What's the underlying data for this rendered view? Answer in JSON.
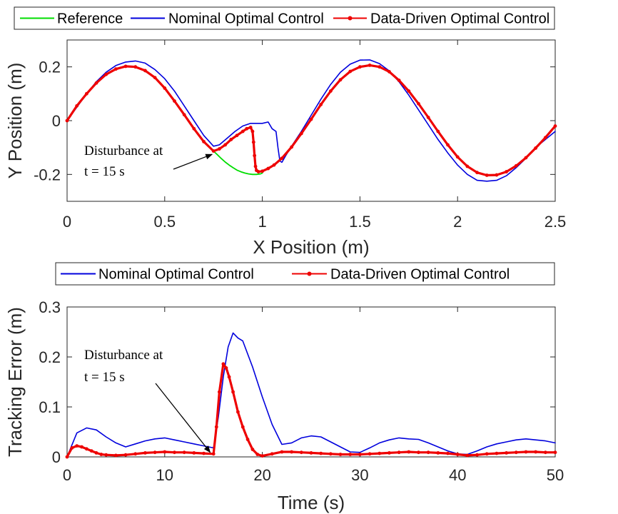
{
  "chart_data": [
    {
      "type": "line",
      "title": "",
      "xlabel": "X Position (m)",
      "ylabel": "Y Position (m)",
      "xlim": [
        0,
        2.5
      ],
      "ylim": [
        -0.3,
        0.3
      ],
      "xticks": [
        0,
        0.5,
        1,
        1.5,
        2,
        2.5
      ],
      "xtick_labels": [
        "0",
        "0.5",
        "1",
        "1.5",
        "2",
        "2.5"
      ],
      "yticks": [
        -0.2,
        0,
        0.2
      ],
      "ytick_labels": [
        "-0.2",
        "0",
        "0.2"
      ],
      "legend": [
        "Reference",
        "Nominal Optimal Control",
        "Data-Driven Optimal Control"
      ],
      "legend_position": "top",
      "annotation": {
        "line1": "Disturbance at",
        "line2": "t = 15 s",
        "target": [
          0.75,
          -0.12
        ]
      },
      "series": [
        {
          "name": "Reference",
          "color": "#00dd00",
          "x": [
            0.75,
            0.77,
            0.79,
            0.81,
            0.83,
            0.85,
            0.87,
            0.89,
            0.91,
            0.93,
            0.95,
            0.97,
            0.99,
            1.0
          ],
          "y": [
            -0.113,
            -0.127,
            -0.141,
            -0.154,
            -0.165,
            -0.175,
            -0.184,
            -0.19,
            -0.195,
            -0.198,
            -0.2,
            -0.2,
            -0.198,
            -0.195
          ]
        },
        {
          "name": "Nominal Optimal Control",
          "color": "#0000dd",
          "x": [
            0,
            0.05,
            0.1,
            0.15,
            0.2,
            0.25,
            0.3,
            0.35,
            0.4,
            0.45,
            0.5,
            0.55,
            0.6,
            0.65,
            0.7,
            0.75,
            0.78,
            0.82,
            0.86,
            0.9,
            0.94,
            0.97,
            1.0,
            1.03,
            1.05,
            1.07,
            1.08,
            1.09,
            1.1,
            1.12,
            1.15,
            1.2,
            1.25,
            1.3,
            1.35,
            1.4,
            1.45,
            1.5,
            1.55,
            1.6,
            1.65,
            1.7,
            1.75,
            1.8,
            1.85,
            1.9,
            1.95,
            2.0,
            2.05,
            2.1,
            2.15,
            2.2,
            2.25,
            2.3,
            2.35,
            2.4,
            2.45,
            2.5
          ],
          "y": [
            0,
            0.05,
            0.1,
            0.145,
            0.18,
            0.205,
            0.218,
            0.222,
            0.214,
            0.19,
            0.156,
            0.11,
            0.055,
            0.0,
            -0.055,
            -0.095,
            -0.09,
            -0.065,
            -0.04,
            -0.02,
            -0.01,
            -0.01,
            -0.01,
            -0.005,
            -0.03,
            -0.04,
            -0.1,
            -0.15,
            -0.155,
            -0.13,
            -0.095,
            -0.04,
            0.02,
            0.08,
            0.135,
            0.18,
            0.21,
            0.225,
            0.226,
            0.212,
            0.185,
            0.145,
            0.095,
            0.04,
            -0.015,
            -0.07,
            -0.12,
            -0.165,
            -0.2,
            -0.222,
            -0.225,
            -0.222,
            -0.205,
            -0.175,
            -0.14,
            -0.1,
            -0.07,
            -0.04
          ]
        },
        {
          "name": "Data-Driven Optimal Control",
          "color": "#ee0000",
          "x": [
            0,
            0.05,
            0.1,
            0.15,
            0.2,
            0.25,
            0.3,
            0.35,
            0.4,
            0.45,
            0.5,
            0.55,
            0.6,
            0.65,
            0.7,
            0.75,
            0.78,
            0.81,
            0.84,
            0.87,
            0.9,
            0.92,
            0.94,
            0.95,
            0.955,
            0.96,
            0.965,
            0.97,
            0.98,
            1.0,
            1.03,
            1.06,
            1.1,
            1.15,
            1.2,
            1.25,
            1.3,
            1.35,
            1.4,
            1.45,
            1.5,
            1.55,
            1.6,
            1.65,
            1.7,
            1.75,
            1.8,
            1.85,
            1.9,
            1.95,
            2.0,
            2.05,
            2.1,
            2.15,
            2.2,
            2.25,
            2.3,
            2.35,
            2.4,
            2.45,
            2.5
          ],
          "y": [
            0,
            0.055,
            0.1,
            0.14,
            0.172,
            0.192,
            0.202,
            0.2,
            0.186,
            0.16,
            0.121,
            0.073,
            0.022,
            -0.03,
            -0.078,
            -0.113,
            -0.105,
            -0.09,
            -0.07,
            -0.055,
            -0.04,
            -0.03,
            -0.025,
            -0.04,
            -0.08,
            -0.13,
            -0.17,
            -0.185,
            -0.19,
            -0.188,
            -0.178,
            -0.165,
            -0.14,
            -0.098,
            -0.048,
            0.005,
            0.06,
            0.11,
            0.152,
            0.183,
            0.2,
            0.206,
            0.2,
            0.182,
            0.15,
            0.11,
            0.063,
            0.012,
            -0.04,
            -0.09,
            -0.135,
            -0.17,
            -0.193,
            -0.203,
            -0.202,
            -0.19,
            -0.168,
            -0.138,
            -0.102,
            -0.063,
            -0.02
          ]
        }
      ]
    },
    {
      "type": "line",
      "title": "",
      "xlabel": "Time (s)",
      "ylabel": "Tracking Error (m)",
      "xlim": [
        0,
        50
      ],
      "ylim": [
        0,
        0.3
      ],
      "xticks": [
        0,
        10,
        20,
        30,
        40,
        50
      ],
      "xtick_labels": [
        "0",
        "10",
        "20",
        "30",
        "40",
        "50"
      ],
      "yticks": [
        0,
        0.1,
        0.2,
        0.3
      ],
      "ytick_labels": [
        "0",
        "0.1",
        "0.2",
        "0.3"
      ],
      "legend": [
        "Nominal Optimal Control",
        "Data-Driven Optimal Control"
      ],
      "legend_position": "top",
      "annotation": {
        "line1": "Disturbance at",
        "line2": "t = 15 s",
        "target": [
          14.8,
          0.012
        ]
      },
      "series": [
        {
          "name": "Nominal Optimal Control",
          "color": "#0000dd",
          "x": [
            0,
            1,
            2,
            3,
            4,
            5,
            6,
            7,
            8,
            9,
            10,
            11,
            12,
            13,
            14,
            15,
            15.5,
            16,
            16.5,
            17,
            17.5,
            18,
            19,
            20,
            21,
            22,
            23,
            24,
            25,
            26,
            27,
            28,
            29,
            30,
            31,
            32,
            33,
            34,
            35,
            36,
            37,
            38,
            39,
            40,
            41,
            42,
            43,
            44,
            45,
            46,
            47,
            48,
            49,
            50
          ],
          "y": [
            0,
            0.048,
            0.058,
            0.054,
            0.04,
            0.028,
            0.02,
            0.026,
            0.032,
            0.036,
            0.038,
            0.034,
            0.03,
            0.026,
            0.022,
            0.018,
            0.08,
            0.16,
            0.22,
            0.248,
            0.238,
            0.232,
            0.18,
            0.12,
            0.065,
            0.025,
            0.028,
            0.038,
            0.042,
            0.04,
            0.03,
            0.02,
            0.01,
            0.009,
            0.018,
            0.028,
            0.034,
            0.038,
            0.036,
            0.035,
            0.028,
            0.02,
            0.012,
            0.006,
            0.005,
            0.012,
            0.02,
            0.026,
            0.03,
            0.034,
            0.036,
            0.034,
            0.032,
            0.028
          ]
        },
        {
          "name": "Data-Driven Optimal Control",
          "color": "#ee0000",
          "x": [
            0,
            0.5,
            1,
            1.5,
            2,
            2.5,
            3,
            3.5,
            4,
            5,
            6,
            7,
            8,
            9,
            10,
            11,
            12,
            13,
            14,
            15,
            15.3,
            15.6,
            16,
            16.3,
            16.6,
            17,
            17.5,
            18,
            18.5,
            19,
            19.5,
            20,
            21,
            22,
            23,
            24,
            25,
            26,
            27,
            28,
            29,
            30,
            31,
            32,
            33,
            34,
            35,
            36,
            37,
            38,
            39,
            40,
            41,
            42,
            43,
            44,
            45,
            46,
            47,
            48,
            49,
            50
          ],
          "y": [
            0,
            0.018,
            0.022,
            0.02,
            0.016,
            0.012,
            0.008,
            0.005,
            0.004,
            0.003,
            0.004,
            0.006,
            0.008,
            0.009,
            0.01,
            0.009,
            0.009,
            0.008,
            0.007,
            0.006,
            0.06,
            0.13,
            0.186,
            0.178,
            0.16,
            0.13,
            0.09,
            0.06,
            0.035,
            0.015,
            0.005,
            0.002,
            0.006,
            0.01,
            0.01,
            0.009,
            0.008,
            0.007,
            0.006,
            0.005,
            0.005,
            0.005,
            0.006,
            0.007,
            0.008,
            0.009,
            0.01,
            0.009,
            0.009,
            0.008,
            0.007,
            0.005,
            0.003,
            0.004,
            0.006,
            0.007,
            0.008,
            0.009,
            0.01,
            0.01,
            0.009,
            0.009
          ]
        }
      ]
    }
  ]
}
